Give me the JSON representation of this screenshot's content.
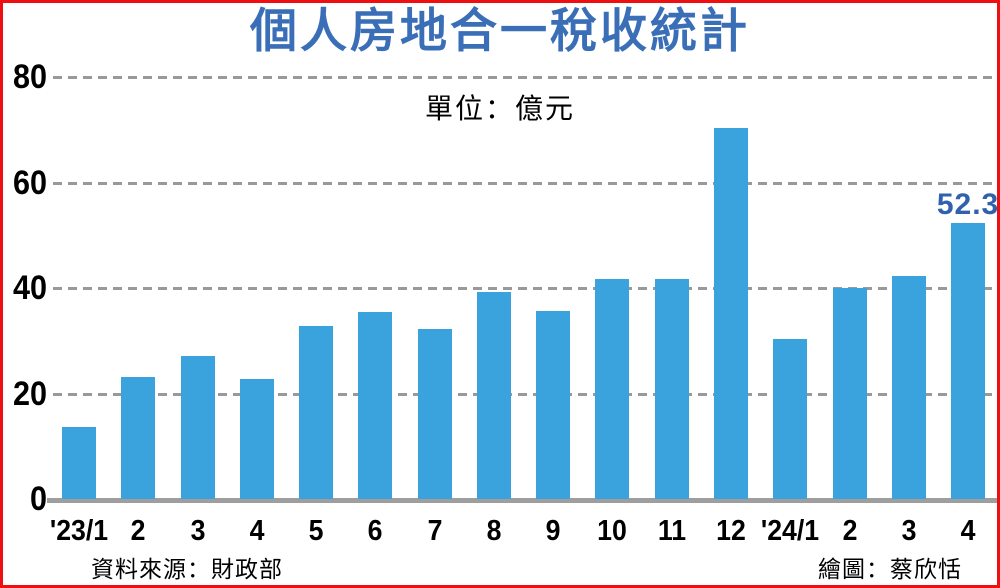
{
  "title": "個人房地合一稅收統計",
  "unit_label": "單位：億元",
  "source_note": "資料來源：財政部",
  "credit_note": "繪圖：蔡欣恬",
  "colors": {
    "bar": "#3aa3dd",
    "title": "#3a6fb7",
    "annotation": "#3061ad",
    "grid": "#999999",
    "axis_line": "#9e9e9e",
    "border": "#ee0f12",
    "text": "#000000"
  },
  "chart_data": {
    "type": "bar",
    "title": "個人房地合一稅收統計",
    "unit": "億元",
    "categories": [
      "'23/1",
      "2",
      "3",
      "4",
      "5",
      "6",
      "7",
      "8",
      "9",
      "10",
      "11",
      "12",
      "'24/1",
      "2",
      "3",
      "4"
    ],
    "values": [
      13.7,
      23.1,
      27.1,
      22.7,
      32.8,
      35.5,
      32.3,
      39.3,
      35.7,
      41.8,
      41.8,
      70.4,
      30.4,
      40.0,
      42.4,
      52.3
    ],
    "y_ticks": [
      0,
      20,
      40,
      60,
      80
    ],
    "ylim": [
      0,
      80
    ],
    "grid": "horizontal-dashed",
    "legend": "none",
    "annotation": {
      "index": 15,
      "text": "52.3"
    }
  }
}
